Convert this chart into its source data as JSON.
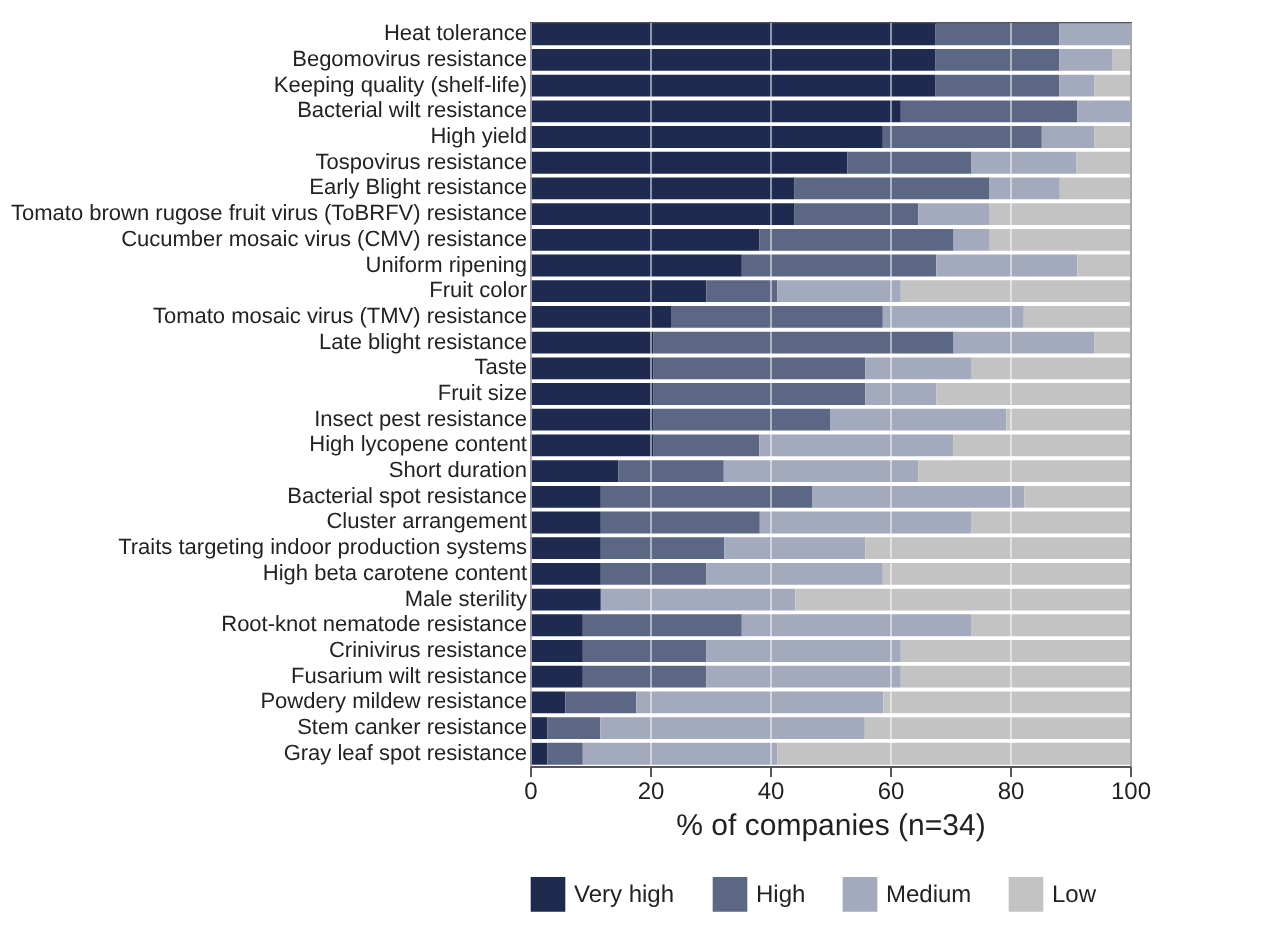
{
  "chart_data": {
    "type": "bar",
    "orientation": "horizontal",
    "stacked": true,
    "xlabel": "% of companies (n=34)",
    "xlim": [
      0,
      100
    ],
    "xticks": [
      0,
      20,
      40,
      60,
      80,
      100
    ],
    "grid": "x",
    "legend": "bottom",
    "categories": [
      "Heat tolerance",
      "Begomovirus resistance",
      "Keeping quality (shelf-life)",
      "Bacterial wilt resistance",
      "High yield",
      "Tospovirus resistance",
      "Early Blight resistance",
      "Tomato brown rugose fruit virus (ToBRFV) resistance",
      "Cucumber mosaic virus (CMV) resistance",
      "Uniform ripening",
      "Fruit color",
      "Tomato mosaic virus (TMV) resistance",
      "Late blight resistance",
      "Taste",
      "Fruit size",
      "Insect pest resistance",
      "High lycopene content",
      "Short duration",
      "Bacterial spot resistance",
      "Cluster arrangement",
      "Traits targeting indoor production systems",
      "High beta carotene content",
      "Male sterility",
      "Root-knot nematode resistance",
      "Crinivirus resistance",
      "Fusarium wilt resistance",
      "Powdery mildew resistance",
      "Stem canker resistance",
      "Gray leaf spot resistance"
    ],
    "series": [
      {
        "name": "Very high",
        "color": "#1e2a50",
        "values": [
          67.6,
          67.6,
          67.6,
          61.8,
          58.8,
          52.9,
          44.1,
          44.1,
          38.2,
          35.3,
          29.4,
          23.5,
          20.6,
          20.6,
          20.6,
          20.6,
          20.6,
          14.7,
          11.8,
          11.8,
          11.8,
          11.8,
          11.8,
          8.8,
          8.8,
          8.8,
          5.9,
          2.9,
          2.9
        ]
      },
      {
        "name": "High",
        "color": "#5c6785",
        "values": [
          20.6,
          20.6,
          20.6,
          29.4,
          26.5,
          20.6,
          32.4,
          20.6,
          32.4,
          32.4,
          11.8,
          35.3,
          50,
          35.3,
          35.3,
          29.4,
          17.6,
          17.6,
          35.3,
          26.5,
          20.6,
          17.6,
          0,
          26.5,
          20.6,
          20.6,
          11.8,
          8.8,
          5.9
        ]
      },
      {
        "name": "Medium",
        "color": "#a4aabd",
        "values": [
          11.8,
          8.8,
          5.9,
          8.8,
          8.8,
          17.6,
          11.8,
          11.8,
          5.9,
          23.5,
          20.6,
          23.5,
          23.5,
          17.6,
          11.8,
          29.4,
          32.4,
          32.4,
          35.3,
          35.3,
          23.5,
          29.4,
          32.4,
          38.2,
          32.4,
          32.4,
          41.2,
          44.1,
          32.4
        ]
      },
      {
        "name": "Low",
        "color": "#c3c3c3",
        "values": [
          0,
          3.0,
          5.9,
          0,
          5.9,
          8.9,
          11.7,
          23.5,
          23.5,
          8.8,
          38.2,
          17.7,
          5.9,
          26.5,
          32.3,
          20.6,
          29.4,
          35.3,
          17.6,
          26.4,
          44.1,
          41.2,
          55.8,
          26.5,
          38.2,
          38.2,
          41.1,
          44.2,
          58.8
        ]
      }
    ]
  }
}
